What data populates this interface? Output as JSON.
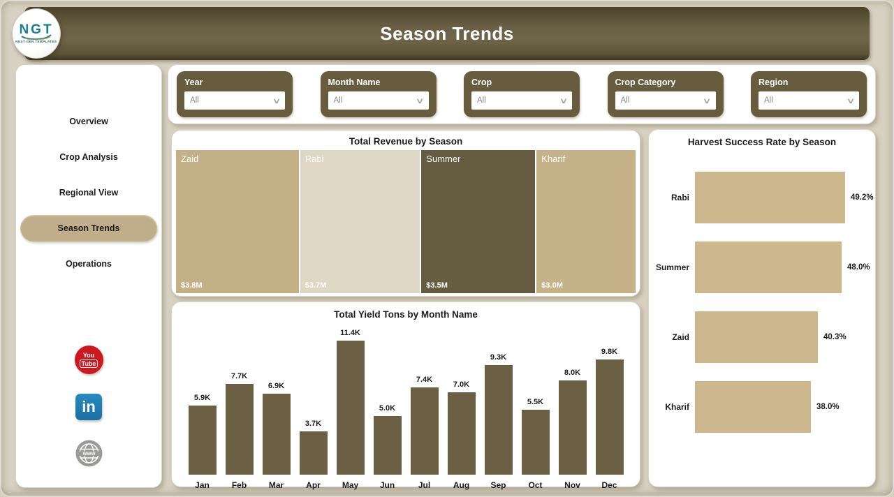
{
  "header": {
    "title": "Season Trends",
    "logo": {
      "text": "NGT",
      "subtext": "NEXT GEN TEMPLATES"
    }
  },
  "sidebar": {
    "items": [
      {
        "label": "Overview",
        "active": false
      },
      {
        "label": "Crop Analysis",
        "active": false
      },
      {
        "label": "Regional View",
        "active": false
      },
      {
        "label": "Season Trends",
        "active": true
      },
      {
        "label": "Operations",
        "active": false
      }
    ],
    "social": [
      {
        "name": "youtube",
        "line1": "You",
        "line2": "Tube"
      },
      {
        "name": "linkedin",
        "label": "in"
      },
      {
        "name": "website",
        "label": "www"
      }
    ]
  },
  "filters": [
    {
      "label": "Year",
      "value": "All"
    },
    {
      "label": "Month Name",
      "value": "All"
    },
    {
      "label": "Crop",
      "value": "All"
    },
    {
      "label": "Crop Category",
      "value": "All"
    },
    {
      "label": "Region",
      "value": "All"
    }
  ],
  "chart_data": [
    {
      "type": "treemap",
      "title": "Total Revenue by Season",
      "items": [
        {
          "label": "Zaid",
          "value": 3.8,
          "value_label": "$3.8M",
          "color": "#c3b086",
          "text_color": "#ffffff"
        },
        {
          "label": "Rabi",
          "value": 3.7,
          "value_label": "$3.7M",
          "color": "#ddd7c3",
          "text_color": "#fdfdf8"
        },
        {
          "label": "Summer",
          "value": 3.5,
          "value_label": "$3.5M",
          "color": "#665c41",
          "text_color": "#ffffff"
        },
        {
          "label": "Kharif",
          "value": 3.0,
          "value_label": "$3.0M",
          "color": "#c6b289",
          "text_color": "#ffffff"
        }
      ]
    },
    {
      "type": "bar",
      "title": "Total Yield Tons by Month Name",
      "categories": [
        "Jan",
        "Feb",
        "Mar",
        "Apr",
        "May",
        "Jun",
        "Jul",
        "Aug",
        "Sep",
        "Oct",
        "Nov",
        "Dec"
      ],
      "values": [
        5900,
        7700,
        6900,
        3700,
        11400,
        5000,
        7400,
        7000,
        9300,
        5500,
        8000,
        9800
      ],
      "labels": [
        "5.9K",
        "7.7K",
        "6.9K",
        "3.7K",
        "11.4K",
        "5.0K",
        "7.4K",
        "7.0K",
        "9.3K",
        "5.5K",
        "8.0K",
        "9.8K"
      ],
      "bar_color": "#6b6044",
      "ylim": [
        0,
        11400
      ]
    },
    {
      "type": "bar-horizontal",
      "title": "Harvest Success Rate by Season",
      "categories": [
        "Rabi",
        "Summer",
        "Zaid",
        "Kharif"
      ],
      "values": [
        49.2,
        48.0,
        40.3,
        38.0
      ],
      "labels": [
        "49.2%",
        "48.0%",
        "40.3%",
        "38.0%"
      ],
      "bar_color": "#cdb88e",
      "xlim": [
        0,
        49.2
      ]
    }
  ],
  "colors": {
    "header_olive": "#675d41",
    "filter_box": "#675d3e",
    "active_pill": "#bfae89",
    "page_bg": "#d8d1c1",
    "accent_teal": "#17808f",
    "youtube_red": "#cc181e",
    "linkedin_blue": "#1b6fa0"
  }
}
